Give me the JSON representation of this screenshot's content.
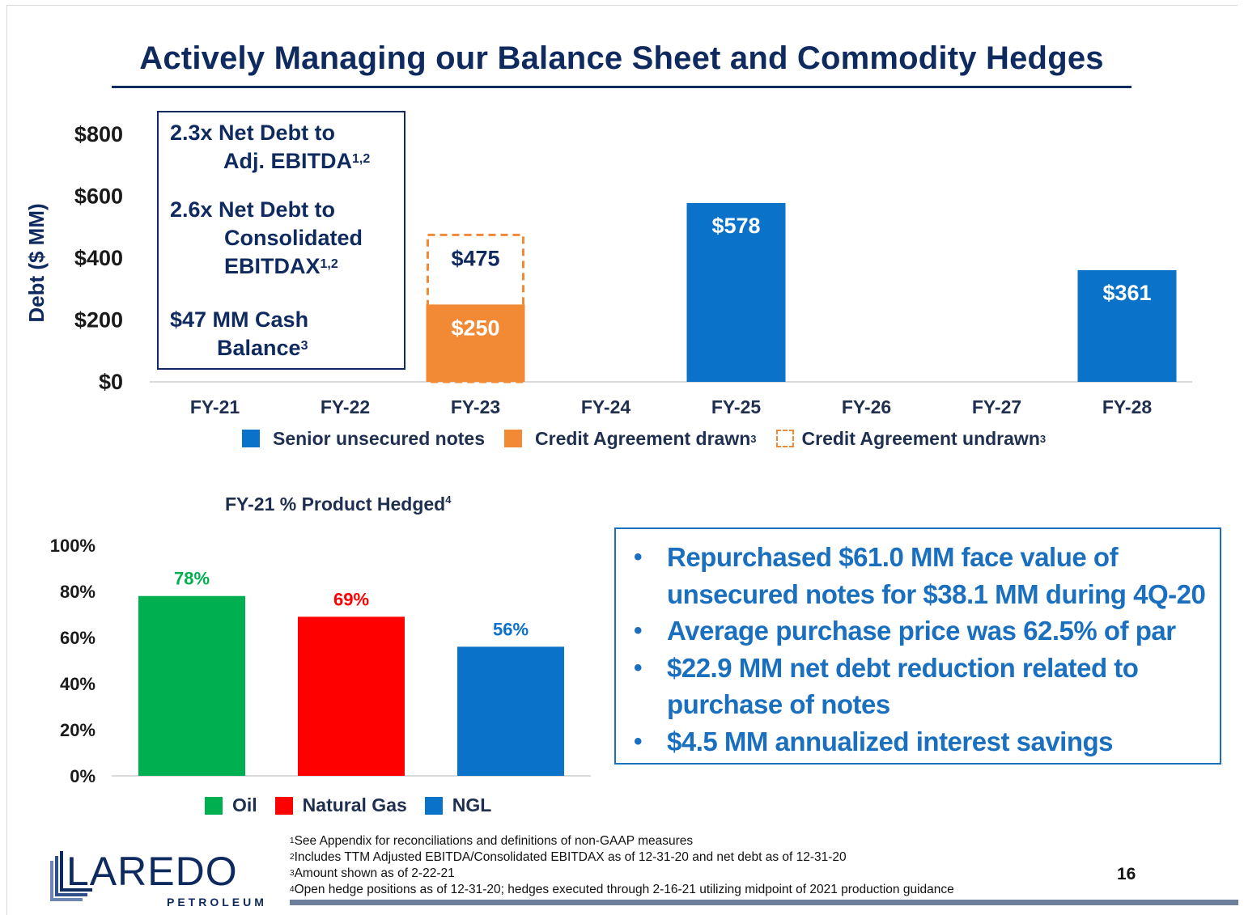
{
  "slide": {
    "title": "Actively Managing our Balance Sheet and Commodity Hedges",
    "page_number": "16"
  },
  "metrics": {
    "m1_line1": "2.3x Net Debt to",
    "m1_line2": "Adj. EBITDA",
    "m1_sup": "1,2",
    "m2_line1": "2.6x Net Debt to",
    "m2_line2": "Consolidated",
    "m2_line3": "EBITDAX",
    "m2_sup": "1,2",
    "m3_line1": "$47 MM Cash",
    "m3_line2": "Balance",
    "m3_sup": "3"
  },
  "hedge_chart_title": {
    "text": "FY-21 % Product Hedged",
    "sup": "4"
  },
  "bullets": [
    "Repurchased $61.0 MM face value of unsecured notes for $38.1 MM during 4Q-20",
    "Average purchase price was 62.5% of par",
    "$22.9 MM net debt reduction related to purchase of notes",
    "$4.5 MM annualized interest savings"
  ],
  "footnotes": [
    {
      "num": "1",
      "text": "See Appendix for reconciliations and definitions of non-GAAP measures"
    },
    {
      "num": "2",
      "text": "Includes TTM Adjusted EBITDA/Consolidated EBITDAX as of 12-31-20 and net debt as of 12-31-20"
    },
    {
      "num": "3",
      "text": "Amount shown as of 2-22-21"
    },
    {
      "num": "4",
      "text": "Open hedge positions as of 12-31-20; hedges executed through 2-16-21 utilizing midpoint of 2021 production guidance"
    }
  ],
  "logo": {
    "name": "LAREDO",
    "sub": "PETROLEUM"
  },
  "colors": {
    "navy": "#0f2a5e",
    "blue": "#0a72c9",
    "orange": "#f28a35",
    "green": "#00b050",
    "red": "#ff0000",
    "bullet_blue": "#1a6fbf"
  },
  "chart_data": [
    {
      "type": "bar",
      "ylabel": "Debt ($ MM)",
      "ylim": [
        0,
        800
      ],
      "yticks": [
        0,
        200,
        400,
        600,
        800
      ],
      "ytick_labels": [
        "$0",
        "$200",
        "$400",
        "$600",
        "$800"
      ],
      "categories": [
        "FY-21",
        "FY-22",
        "FY-23",
        "FY-24",
        "FY-25",
        "FY-26",
        "FY-27",
        "FY-28"
      ],
      "stacked": true,
      "series": [
        {
          "name": "Senior unsecured notes",
          "sup": "",
          "style": "solid",
          "color": "#0a72c9",
          "values": [
            0,
            0,
            0,
            0,
            578,
            0,
            0,
            361
          ],
          "labels": [
            "",
            "",
            "",
            "",
            "$578",
            "",
            "",
            "$361"
          ]
        },
        {
          "name": "Credit Agreement drawn",
          "sup": "3",
          "style": "solid",
          "color": "#f28a35",
          "values": [
            0,
            0,
            250,
            0,
            0,
            0,
            0,
            0
          ],
          "labels": [
            "",
            "",
            "$250",
            "",
            "",
            "",
            "",
            ""
          ]
        },
        {
          "name": "Credit Agreement undrawn",
          "sup": "3",
          "style": "dashed",
          "color": "#f28a35",
          "values": [
            0,
            0,
            475,
            0,
            0,
            0,
            0,
            0
          ],
          "labels": [
            "",
            "",
            "$475",
            "",
            "",
            "",
            "",
            ""
          ]
        }
      ],
      "legend": "bottom"
    },
    {
      "type": "bar",
      "title": "FY-21 % Product Hedged",
      "ylim": [
        0,
        100
      ],
      "yticks": [
        0,
        20,
        40,
        60,
        80,
        100
      ],
      "ytick_labels": [
        "0%",
        "20%",
        "40%",
        "60%",
        "80%",
        "100%"
      ],
      "categories": [
        "Oil",
        "Natural Gas",
        "NGL"
      ],
      "values": [
        78,
        69,
        56
      ],
      "labels": [
        "78%",
        "69%",
        "56%"
      ],
      "colors": [
        "#00b050",
        "#ff0000",
        "#0a72c9"
      ],
      "legend": "bottom"
    }
  ]
}
